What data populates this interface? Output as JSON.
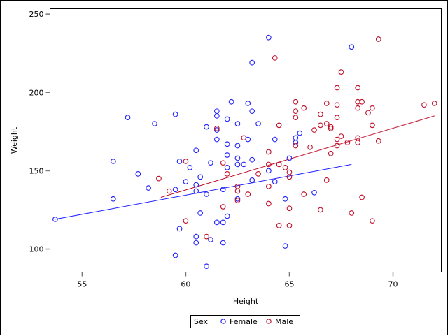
{
  "chart_data": {
    "type": "scatter",
    "title": "",
    "xlabel": "Height",
    "ylabel": "Weight",
    "xlim": [
      53.45,
      72.33
    ],
    "ylim": [
      85.3,
      253.4
    ],
    "xticks": [
      55,
      60,
      65,
      70
    ],
    "yticks": [
      100,
      150,
      200,
      250
    ],
    "grid": false,
    "legend": {
      "title": "Sex",
      "placement": "bottom-center",
      "entries": [
        "Female",
        "Male"
      ]
    },
    "series": [
      {
        "name": "Female",
        "color": "#2020ff",
        "marker": "open-circle",
        "points": [
          [
            53.7,
            119
          ],
          [
            56.5,
            156
          ],
          [
            56.5,
            132
          ],
          [
            57.2,
            184
          ],
          [
            57.7,
            148
          ],
          [
            58.2,
            139
          ],
          [
            58.5,
            180
          ],
          [
            59.5,
            186
          ],
          [
            61.5,
            188
          ],
          [
            61.5,
            185
          ],
          [
            62.2,
            194
          ],
          [
            63.0,
            193
          ],
          [
            63.2,
            188
          ],
          [
            62.0,
            183
          ],
          [
            62.5,
            180
          ],
          [
            63.5,
            180
          ],
          [
            61.0,
            178
          ],
          [
            61.5,
            176
          ],
          [
            61.5,
            170
          ],
          [
            63.0,
            170
          ],
          [
            64.3,
            170
          ],
          [
            65.3,
            171
          ],
          [
            65.3,
            168
          ],
          [
            65.5,
            174
          ],
          [
            62.0,
            167
          ],
          [
            62.5,
            166
          ],
          [
            60.5,
            163
          ],
          [
            62.0,
            160
          ],
          [
            62.5,
            158
          ],
          [
            63.2,
            157
          ],
          [
            65.0,
            158
          ],
          [
            59.7,
            156
          ],
          [
            60.2,
            152
          ],
          [
            61.2,
            155
          ],
          [
            62.0,
            152
          ],
          [
            62.5,
            154
          ],
          [
            62.8,
            154
          ],
          [
            64.0,
            150
          ],
          [
            60.7,
            146
          ],
          [
            60.0,
            143
          ],
          [
            60.5,
            141
          ],
          [
            63.2,
            144
          ],
          [
            64.3,
            143
          ],
          [
            59.5,
            138
          ],
          [
            61.8,
            138
          ],
          [
            60.5,
            137
          ],
          [
            61.0,
            135
          ],
          [
            62.5,
            132
          ],
          [
            64.8,
            132
          ],
          [
            66.2,
            136
          ],
          [
            60.7,
            123
          ],
          [
            62.0,
            121
          ],
          [
            61.5,
            117
          ],
          [
            61.8,
            117
          ],
          [
            59.7,
            113
          ],
          [
            60.5,
            108
          ],
          [
            60.5,
            104
          ],
          [
            61.2,
            106
          ],
          [
            61.8,
            104
          ],
          [
            64.8,
            102
          ],
          [
            59.5,
            96
          ],
          [
            61.0,
            89
          ],
          [
            64.0,
            235
          ],
          [
            63.2,
            219
          ],
          [
            68.0,
            229
          ]
        ],
        "fit": [
          [
            53.7,
            119
          ],
          [
            68.0,
            154
          ]
        ]
      },
      {
        "name": "Male",
        "color": "#c0102a",
        "marker": "open-circle",
        "points": [
          [
            65.3,
            194
          ],
          [
            65.3,
            188
          ],
          [
            65.3,
            184
          ],
          [
            64.5,
            179
          ],
          [
            61.5,
            177
          ],
          [
            62.8,
            171
          ],
          [
            65.3,
            166
          ],
          [
            64.0,
            162
          ],
          [
            60.0,
            156
          ],
          [
            61.8,
            155
          ],
          [
            62.0,
            148
          ],
          [
            63.5,
            148
          ],
          [
            64.0,
            154
          ],
          [
            64.5,
            154
          ],
          [
            64.8,
            152
          ],
          [
            65.0,
            149
          ],
          [
            65.0,
            146
          ],
          [
            62.5,
            140
          ],
          [
            64.0,
            140
          ],
          [
            59.2,
            137
          ],
          [
            62.5,
            137
          ],
          [
            62.5,
            131
          ],
          [
            63.0,
            135
          ],
          [
            64.0,
            129
          ],
          [
            65.7,
            135
          ],
          [
            66.8,
            144
          ],
          [
            61.8,
            127
          ],
          [
            65.0,
            126
          ],
          [
            66.5,
            125
          ],
          [
            60.0,
            118
          ],
          [
            64.5,
            115
          ],
          [
            65.0,
            115
          ],
          [
            61.0,
            108
          ],
          [
            58.7,
            145
          ],
          [
            67.5,
            213
          ],
          [
            67.3,
            203
          ],
          [
            68.3,
            203
          ],
          [
            68.3,
            194
          ],
          [
            68.5,
            194
          ],
          [
            66.8,
            193
          ],
          [
            67.3,
            192
          ],
          [
            71.5,
            192
          ],
          [
            72.0,
            193
          ],
          [
            65.7,
            190
          ],
          [
            68.3,
            190
          ],
          [
            69.0,
            190
          ],
          [
            66.5,
            186
          ],
          [
            68.8,
            187
          ],
          [
            67.3,
            184
          ],
          [
            66.5,
            179
          ],
          [
            66.8,
            180
          ],
          [
            67.0,
            178
          ],
          [
            67.0,
            177
          ],
          [
            69.0,
            179
          ],
          [
            66.2,
            176
          ],
          [
            67.5,
            172
          ],
          [
            67.3,
            170
          ],
          [
            68.3,
            171
          ],
          [
            67.8,
            168
          ],
          [
            68.3,
            168
          ],
          [
            69.3,
            169
          ],
          [
            67.3,
            166
          ],
          [
            66.0,
            165
          ],
          [
            67.0,
            161
          ],
          [
            64.3,
            222
          ],
          [
            69.3,
            234
          ],
          [
            68.0,
            123
          ],
          [
            69.0,
            118
          ],
          [
            68.5,
            133
          ]
        ],
        "fit": [
          [
            58.8,
            133
          ],
          [
            72.0,
            185
          ]
        ]
      }
    ]
  }
}
